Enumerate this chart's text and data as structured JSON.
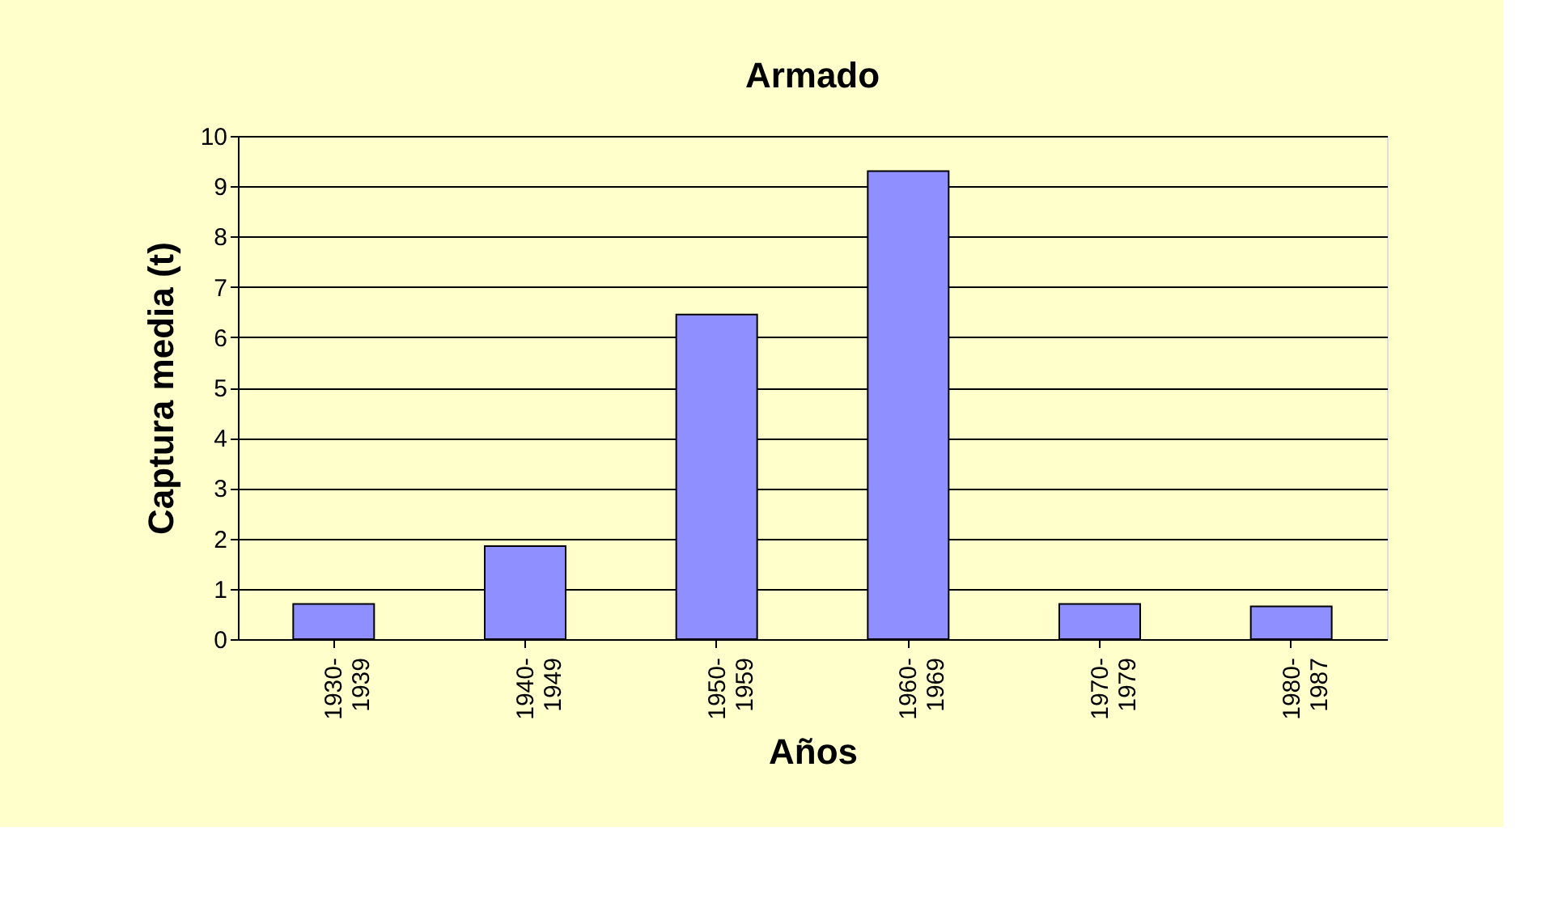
{
  "chart_data": {
    "type": "bar",
    "title": "Armado",
    "xlabel": "Años",
    "ylabel": "Captura media (t)",
    "categories": [
      "1930-1939",
      "1940-1949",
      "1950-1959",
      "1960-1969",
      "1970-1979",
      "1980-1987"
    ],
    "values": [
      0.7,
      1.85,
      6.45,
      9.3,
      0.7,
      0.65
    ],
    "color": "#8f8fff",
    "ylim": [
      0,
      10
    ],
    "yticks": [
      0,
      1,
      2,
      3,
      4,
      5,
      6,
      7,
      8,
      9,
      10
    ],
    "grid": "y"
  }
}
